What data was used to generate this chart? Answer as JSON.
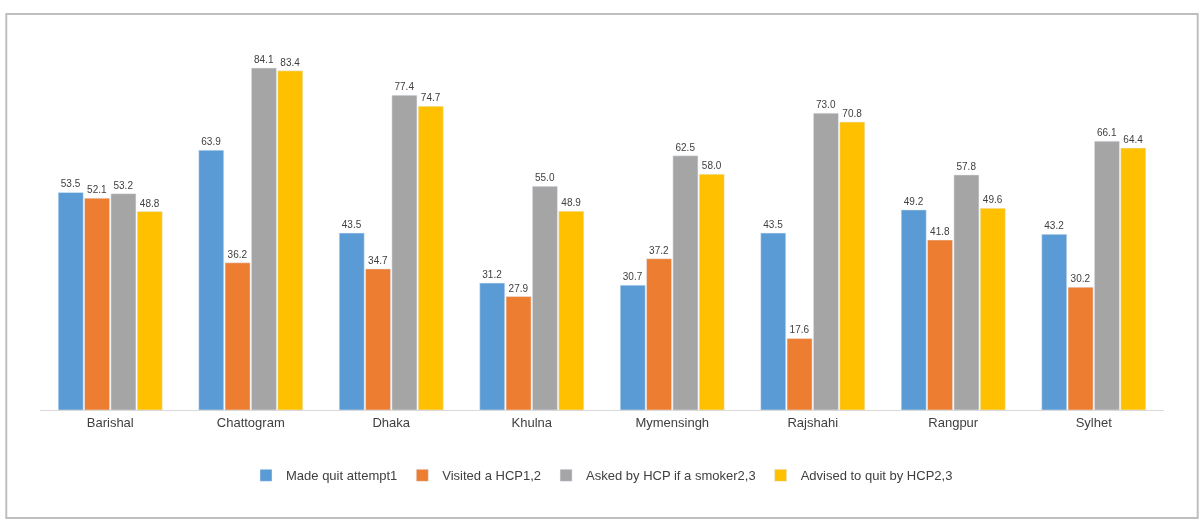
{
  "chart_data": {
    "type": "bar",
    "categories": [
      "Barishal",
      "Chattogram",
      "Dhaka",
      "Khulna",
      "Mymensingh",
      "Rajshahi",
      "Rangpur",
      "Sylhet"
    ],
    "series": [
      {
        "name": "Made quit attempt1",
        "color": "#5b9bd5",
        "values": [
          53.5,
          63.9,
          43.5,
          31.2,
          30.7,
          43.5,
          49.2,
          43.2
        ],
        "value_labels": [
          "53.5",
          "63.9",
          "43.5",
          "31.2",
          "30.7",
          "43.5",
          "49.2",
          "43.2"
        ]
      },
      {
        "name": "Visited a HCP1,2",
        "color": "#ed7d31",
        "values": [
          52.1,
          36.2,
          34.7,
          27.9,
          37.2,
          17.6,
          41.8,
          30.2
        ],
        "value_labels": [
          "52.1",
          "36.2",
          "34.7",
          "27.9",
          "37.2",
          "17.6",
          "41.8",
          "30.2"
        ]
      },
      {
        "name": "Asked by HCP if a smoker2,3",
        "color": "#a5a5a5",
        "values": [
          53.2,
          84.1,
          77.4,
          55.0,
          62.5,
          73.0,
          57.8,
          66.1
        ],
        "value_labels": [
          "53.2",
          "84.1",
          "77.4",
          "55.0",
          "62.5",
          "73.0",
          "57.8",
          "66.1"
        ]
      },
      {
        "name": "Advised to quit by HCP2,3",
        "color": "#ffc000",
        "values": [
          48.8,
          83.4,
          74.7,
          48.9,
          58.0,
          70.8,
          49.6,
          64.4
        ],
        "value_labels": [
          "48.8",
          "83.4",
          "74.7",
          "48.9",
          "58.0",
          "70.8",
          "49.6",
          "64.4"
        ]
      }
    ],
    "legend": "bottom"
  }
}
